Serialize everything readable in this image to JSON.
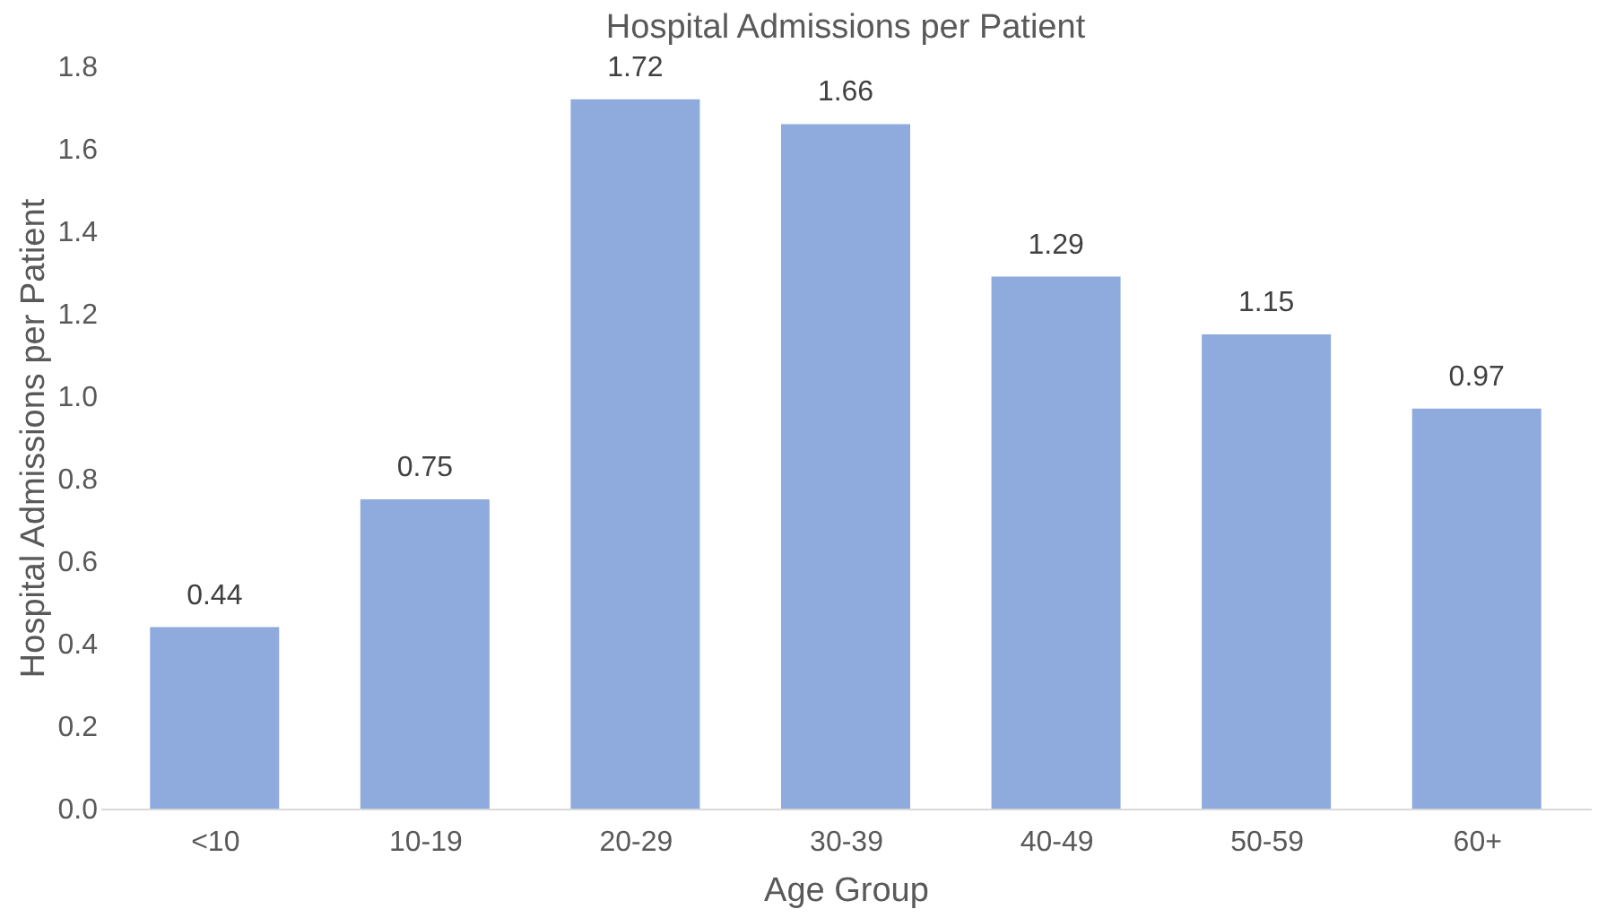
{
  "chart_data": {
    "type": "bar",
    "title": "Hospital Admissions per Patient",
    "xlabel": "Age Group",
    "ylabel": "Hospital Admissions per Patient",
    "categories": [
      "<10",
      "10-19",
      "20-29",
      "30-39",
      "40-49",
      "50-59",
      "60+"
    ],
    "values": [
      0.44,
      0.75,
      1.72,
      1.66,
      1.29,
      1.15,
      0.97
    ],
    "color": "#8faadc",
    "ylim": [
      0,
      1.8
    ],
    "yticks": [
      {
        "value": 0,
        "label": "0.0"
      },
      0.2,
      0.4,
      0.6,
      0.8,
      {
        "value": 1,
        "label": "1.0"
      },
      1.2,
      1.4,
      1.6,
      1.8
    ],
    "grid": false,
    "data_labels": true
  }
}
